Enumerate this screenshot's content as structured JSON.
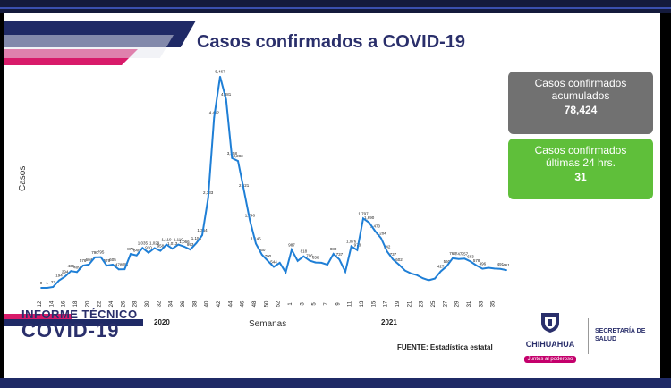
{
  "chart_data": {
    "type": "line",
    "title": "Casos confirmados a COVID-19",
    "xlabel": "Semanas",
    "ylabel": "Casos",
    "year_labels": [
      "2020",
      "2021"
    ],
    "tick_labels": [
      "12",
      "14",
      "16",
      "18",
      "20",
      "22",
      "24",
      "26",
      "28",
      "30",
      "32",
      "34",
      "36",
      "38",
      "40",
      "42",
      "44",
      "46",
      "48",
      "50",
      "52",
      "1",
      "3",
      "5",
      "7",
      "9",
      "11",
      "13",
      "15",
      "17",
      "19",
      "21",
      "23",
      "25",
      "27",
      "29",
      "31",
      "33",
      "35"
    ],
    "x": [
      "12",
      "13",
      "14",
      "15",
      "16",
      "17",
      "18",
      "19",
      "20",
      "21",
      "22",
      "23",
      "24",
      "25",
      "26",
      "27",
      "28",
      "29",
      "30",
      "31",
      "32",
      "33",
      "34",
      "35",
      "36",
      "37",
      "38",
      "39",
      "40",
      "41",
      "42",
      "43",
      "44",
      "45",
      "46",
      "47",
      "48",
      "49",
      "50",
      "51",
      "52",
      "53",
      "1",
      "2",
      "3",
      "4",
      "5",
      "6",
      "7",
      "8",
      "9",
      "10",
      "11",
      "12",
      "13",
      "14",
      "15",
      "16",
      "17",
      "18",
      "19",
      "20",
      "21",
      "22",
      "23",
      "24",
      "25",
      "26",
      "27",
      "28",
      "29",
      "30",
      "31",
      "32",
      "33",
      "34",
      "35",
      "36",
      "37"
    ],
    "values": [
      0,
      1,
      22,
      194,
      294,
      436,
      409,
      576,
      604,
      790,
      795,
      576,
      605,
      478,
      484,
      876,
      840,
      1035,
      910,
      1029,
      958,
      1119,
      1013,
      1119,
      1066,
      993,
      1154,
      1364,
      2333,
      4412,
      5467,
      4881,
      3358,
      3283,
      2521,
      1746,
      1145,
      860,
      700,
      544,
      650,
      400,
      987,
      700,
      818,
      706,
      658,
      650,
      600,
      880,
      737,
      420,
      1076,
      978,
      1797,
      1690,
      1470,
      1284,
      942,
      737,
      602,
      450,
      375,
      330,
      250,
      200,
      240,
      427,
      560,
      769,
      747,
      757,
      683,
      578,
      496,
      520,
      500,
      491,
      461
    ],
    "value_labels": [
      "0",
      "1",
      "22",
      "194",
      "294",
      "436",
      "409",
      "576",
      "604",
      "790",
      "795",
      "576",
      "605",
      "478",
      "484",
      "876",
      "840",
      "1,035",
      "910",
      "1,029",
      "958",
      "1,119",
      "1,013",
      "1,119",
      "1,066",
      "993",
      "1,154",
      "1,364",
      "2,333",
      "4,412",
      "5,467",
      "4,881",
      "3,358",
      "3,283",
      "2,521",
      "1,746",
      "1,145",
      "860",
      "700",
      "544",
      "",
      "",
      "987",
      "",
      "818",
      "706",
      "658",
      "",
      "",
      "880",
      "737",
      "",
      "1,076",
      "978",
      "1,797",
      "1,690",
      "1,470",
      "1,284",
      "942",
      "737",
      "602",
      "",
      "",
      "",
      "",
      "",
      "",
      "427",
      "560",
      "769",
      "747",
      "757",
      "683",
      "578",
      "496",
      "",
      "",
      "491",
      "461"
    ],
    "ylim": [
      0,
      5600
    ]
  },
  "cards": {
    "accum_label": "Casos confirmados acumulados",
    "accum_value": "78,424",
    "last24_label": "Casos confirmados últimas 24 hrs.",
    "last24_value": "31"
  },
  "footer": {
    "report_line1": "INFORME TÉCNICO",
    "report_line2": "COVID-19",
    "source": "FUENTE: Estadística estatal",
    "state_name": "CHIHUAHUA",
    "slogan": "Juntos al poderoso",
    "ministry": "SECRETARÍA DE SALUD"
  },
  "colors": {
    "line": "#1f7fd6",
    "title": "#2a2f6b",
    "pink_band": "#d81b6a",
    "navy_band": "#1f2a66",
    "gray_card": "#717171",
    "green_card": "#5fbf3a"
  }
}
